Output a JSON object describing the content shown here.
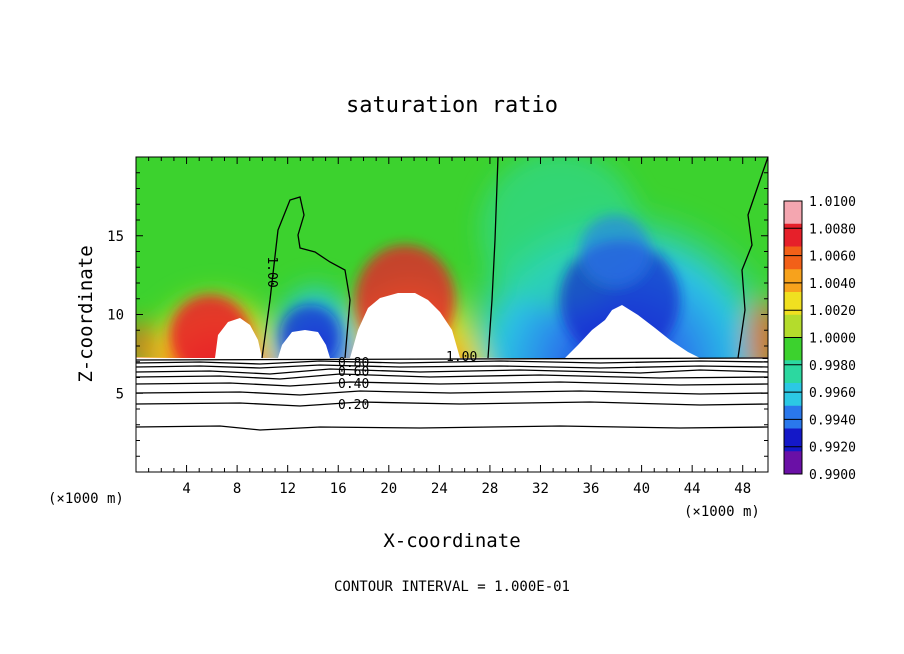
{
  "chart_data": {
    "type": "heatmap",
    "title": "saturation ratio",
    "xlabel": "X-coordinate",
    "ylabel": "Z-coordinate",
    "x_unit": "(×1000 m)",
    "z_unit": "(×1000 m)",
    "x_ticks": [
      4,
      8,
      12,
      16,
      20,
      24,
      28,
      32,
      36,
      40,
      44,
      48
    ],
    "y_ticks": [
      5,
      10,
      15
    ],
    "xlim": [
      0,
      50
    ],
    "ylim": [
      0,
      20
    ],
    "colorbar_levels": [
      "1.0100",
      "1.0080",
      "1.0060",
      "1.0040",
      "1.0020",
      "1.0000",
      "0.9980",
      "0.9960",
      "0.9940",
      "0.9920",
      "0.9900"
    ],
    "colorbar_colors": [
      "#f4a6b0",
      "#e6202a",
      "#f26018",
      "#f7a21c",
      "#f0e020",
      "#b4dc2c",
      "#3cd22e",
      "#2cd8a0",
      "#2cc8e4",
      "#2a78ec",
      "#1418c8",
      "#6a10a6"
    ],
    "contour_labels": [
      {
        "text": "1.00"
      },
      {
        "text": "1.00"
      },
      {
        "text": "0.80"
      },
      {
        "text": "0.60"
      },
      {
        "text": "0.40"
      },
      {
        "text": "0.20"
      }
    ],
    "footnote": "CONTOUR INTERVAL = 1.000E-01"
  }
}
